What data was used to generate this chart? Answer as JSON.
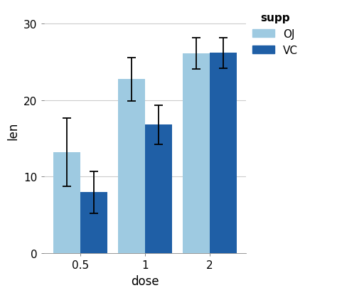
{
  "doses": [
    "0.5",
    "1",
    "2"
  ],
  "OJ_means": [
    13.23,
    22.7,
    26.06
  ],
  "VC_means": [
    7.98,
    16.77,
    26.14
  ],
  "OJ_se_upper": [
    4.46,
    2.83,
    2.03
  ],
  "OJ_se_lower": [
    4.46,
    2.83,
    2.03
  ],
  "VC_se_upper": [
    2.75,
    2.52,
    1.98
  ],
  "VC_se_lower": [
    2.75,
    2.52,
    1.98
  ],
  "OJ_color": "#9ecae1",
  "VC_color": "#1f5fa6",
  "bar_width": 0.42,
  "ylim": [
    0,
    32
  ],
  "yticks": [
    0,
    10,
    20,
    30
  ],
  "ylabel": "len",
  "xlabel": "dose",
  "legend_title": "supp",
  "legend_labels": [
    "OJ",
    "VC"
  ],
  "bg_color": "#ffffff",
  "panel_bg": "#ffffff",
  "grid_color": "#cccccc",
  "axis_fontsize": 12,
  "legend_fontsize": 11,
  "tick_label_fontsize": 11
}
